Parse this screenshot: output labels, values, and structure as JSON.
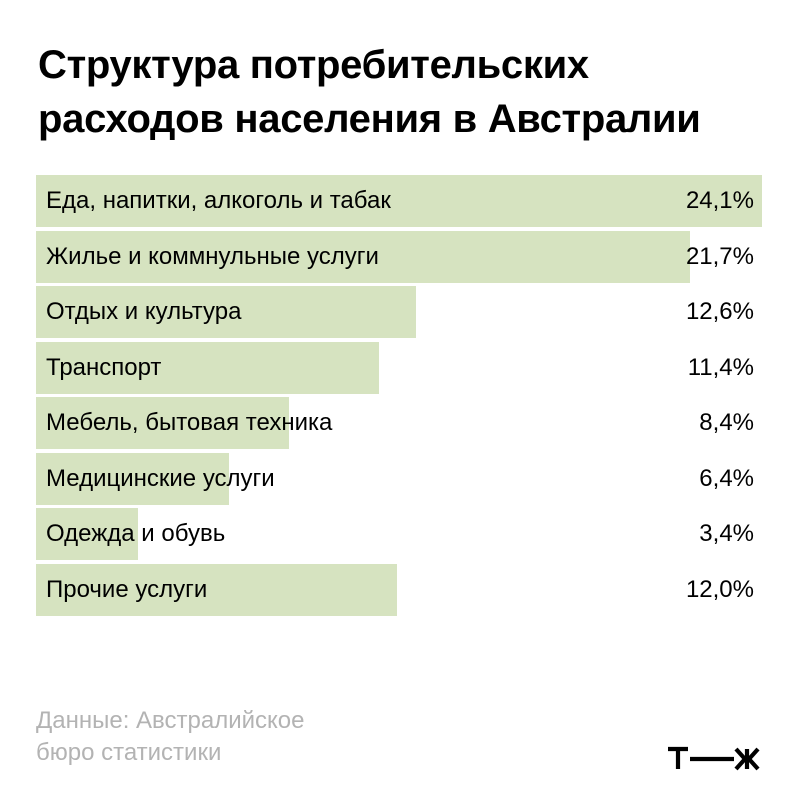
{
  "title_lines": [
    "Структура потребительских",
    "расходов населения в Австралии"
  ],
  "chart_data": {
    "type": "bar",
    "orientation": "horizontal",
    "title": "Структура потребительских расходов населения в Австралии",
    "categories": [
      "Еда, напитки, алкоголь и табак",
      "Жилье и коммнульные услуги",
      "Отдых и культура",
      "Транспорт",
      "Мебель, бытовая техника",
      "Медицинские услуги",
      "Одежда и обувь",
      "Прочие услуги"
    ],
    "values": [
      24.1,
      21.7,
      12.6,
      11.4,
      8.4,
      6.4,
      3.4,
      12.0
    ],
    "value_labels": [
      "24,1%",
      "21,7%",
      "12,6%",
      "11,4%",
      "8,4%",
      "6,4%",
      "3,4%",
      "12,0%"
    ],
    "unit": "%",
    "xlim": [
      0,
      24.1
    ],
    "grid": false,
    "bar_color": "#d6e3c0"
  },
  "source_lines": [
    "Данные: Австралийское",
    "бюро статистики"
  ],
  "logo": {
    "text": "т—ж",
    "icon": "tzh-logo"
  },
  "colors": {
    "bar": "#d6e3c0",
    "source_text": "#b3b3b3",
    "text": "#000000"
  }
}
